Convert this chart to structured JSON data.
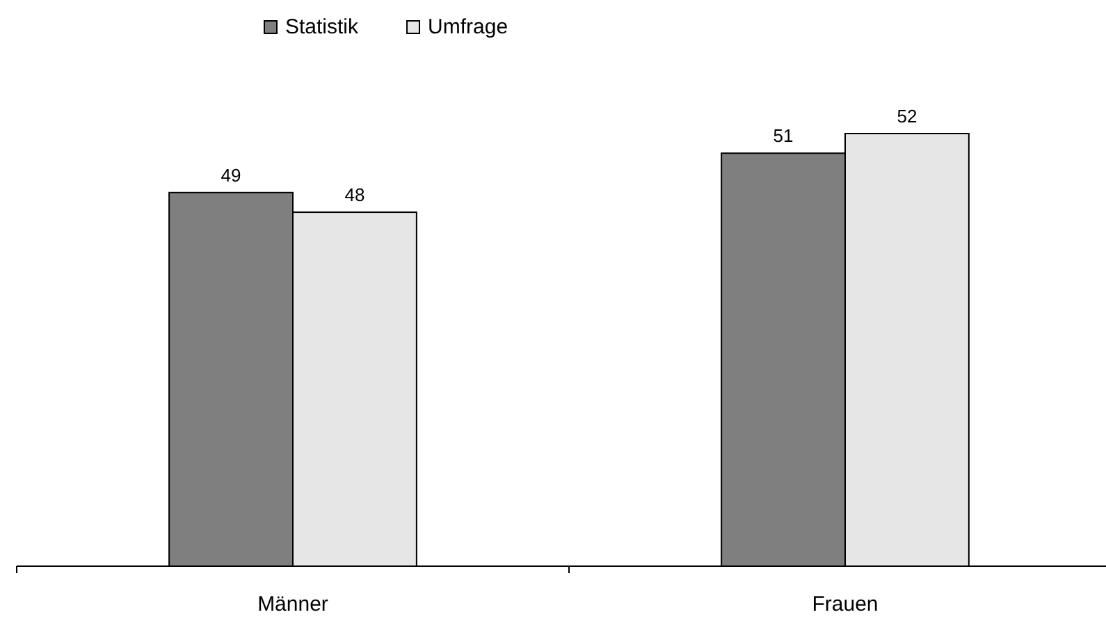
{
  "chart_data": {
    "type": "bar",
    "categories": [
      "Männer",
      "Frauen"
    ],
    "series": [
      {
        "name": "Statistik",
        "color": "#7f7f7f",
        "values": [
          49,
          51
        ]
      },
      {
        "name": "Umfrage",
        "color": "#e6e6e6",
        "values": [
          48,
          52
        ]
      }
    ],
    "ylim": [
      30,
      52
    ],
    "tick_labels": "x",
    "data_labels": true,
    "legend": "top"
  }
}
